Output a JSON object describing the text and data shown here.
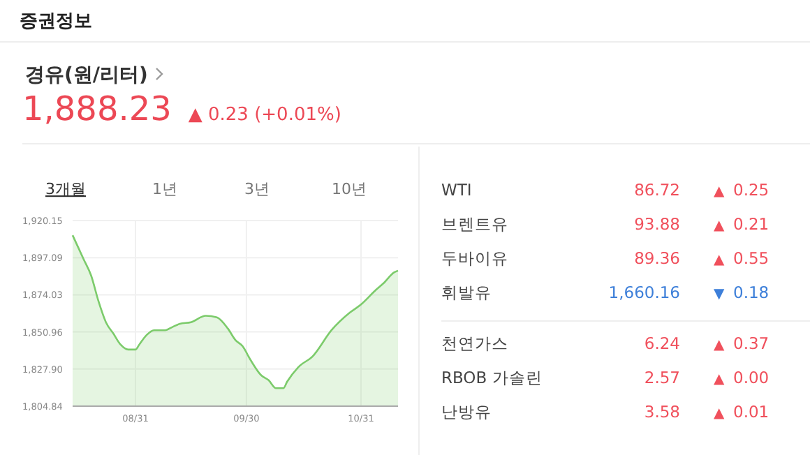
{
  "chart_data": [
    {
      "type": "area",
      "title": "경유(원/리터)",
      "subtitle": "1,888.23 ▲ 0.23 (+0.01%)",
      "annotations": [
        "증권정보",
        "3개월",
        "1년",
        "3년",
        "10년"
      ],
      "x": [
        "--08-14",
        "--08-17",
        "--08-19",
        "--08-21",
        "--08-23",
        "--08-25",
        "--08-27",
        "--08-29",
        "--08-31",
        "--09-01",
        "--09-03",
        "--09-05",
        "--09-08",
        "--09-10",
        "--09-12",
        "--09-15",
        "--09-19",
        "--09-22",
        "--09-25",
        "--09-27",
        "--09-29",
        "--10-01",
        "--10-04",
        "--10-06",
        "--10-08",
        "--10-10",
        "--10-11",
        "--10-14",
        "--10-18",
        "--10-23",
        "--10-28",
        "--10-31",
        "--11-04",
        "--11-06",
        "--11-09",
        "--11-10"
      ],
      "series": [
        {
          "color": "#7ccb6b",
          "values": [
            1911,
            1896,
            1886,
            1870,
            1857,
            1850,
            1843,
            1840,
            1840,
            1843,
            1849,
            1852,
            1852,
            1854,
            1856,
            1857,
            1861,
            1860,
            1853,
            1846,
            1842,
            1834,
            1824,
            1821,
            1816,
            1816,
            1820,
            1829,
            1836,
            1852,
            1863,
            1868,
            1877,
            1881,
            1888,
            1889
          ]
        }
      ],
      "xlim": [
        "--08-14",
        "--11-10"
      ],
      "xticks": [
        {
          "value": "--08-31",
          "label": "08/31"
        },
        {
          "value": "--09-30",
          "label": "09/30"
        },
        {
          "value": "--10-31",
          "label": "10/31"
        }
      ],
      "ylim": [
        1804.84,
        1920.15
      ],
      "yticks": [
        {
          "value": 1804.84,
          "label": "1,804.84"
        },
        {
          "value": 1827.9,
          "label": "1,827.90"
        },
        {
          "value": 1850.96,
          "label": "1,850.96"
        },
        {
          "value": 1874.03,
          "label": "1,874.03"
        },
        {
          "value": 1897.09,
          "label": "1,897.09"
        },
        {
          "value": 1920.15,
          "label": "1,920.15"
        }
      ],
      "grid": true,
      "marker": "none"
    },
    {
      "type": "other",
      "annotations": [
        "WTI",
        "86.72",
        "▲ 0.25",
        "브렌트유",
        "93.88",
        "▲ 0.21",
        "두바이유",
        "89.36",
        "▲ 0.55",
        "휘발유",
        "1,660.16",
        "▼ 0.18",
        "천연가스",
        "6.24",
        "▲ 0.37",
        "RBOB 가솔린",
        "2.57",
        "▲ 0.00",
        "난방유",
        "3.58",
        "▲ 0.01"
      ],
      "colors": [
        "#f0505c",
        "#f0505c",
        "#f0505c",
        "#3d7fd9",
        "#f0505c",
        "#f0505c",
        "#f0505c"
      ]
    }
  ]
}
